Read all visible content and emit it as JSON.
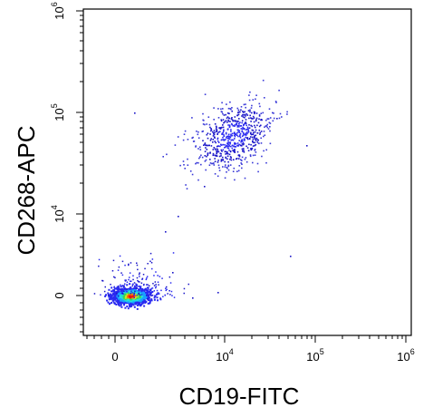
{
  "chart_data": {
    "type": "scatter",
    "title": "",
    "xlabel": "CD19-FITC",
    "ylabel": "CD268-APC",
    "x_scale": "biexponential",
    "y_scale": "biexponential",
    "xlim": [
      -1000,
      1000000
    ],
    "ylim": [
      -1000,
      1000000
    ],
    "x_tick_labels": [
      {
        "base": "0",
        "exp": ""
      },
      {
        "base": "10",
        "exp": "4"
      },
      {
        "base": "10",
        "exp": "5"
      },
      {
        "base": "10",
        "exp": "6"
      }
    ],
    "y_tick_labels": [
      {
        "base": "0",
        "exp": ""
      },
      {
        "base": "10",
        "exp": "4"
      },
      {
        "base": "10",
        "exp": "5"
      },
      {
        "base": "10",
        "exp": "6"
      }
    ],
    "grid": false,
    "legend": "none",
    "colormap": "density (blue → cyan → green → yellow → red)",
    "populations": [
      {
        "description": "double-negative cluster",
        "x_center": 150,
        "y_center": 0,
        "density": "high"
      },
      {
        "description": "CD19+ CD268+ cluster",
        "x_center": 12000,
        "y_center": 25000,
        "density": "medium"
      }
    ]
  }
}
